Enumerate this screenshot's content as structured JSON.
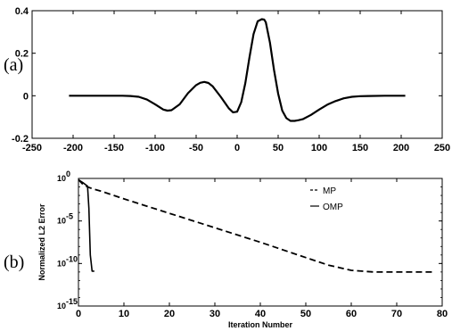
{
  "panels": [
    {
      "label": "(a)"
    },
    {
      "label": "(b)"
    }
  ],
  "chart_data": [
    {
      "type": "line",
      "title": "",
      "xlabel": "",
      "ylabel": "",
      "xlim": [
        -250,
        250
      ],
      "ylim": [
        -0.2,
        0.4
      ],
      "xticks": [
        -250,
        -200,
        -150,
        -100,
        -50,
        0,
        50,
        100,
        150,
        200,
        250
      ],
      "xtick_labels": [
        "-250",
        "-200",
        "-150",
        "-100",
        "-50",
        "0",
        "50",
        "100",
        "150",
        "200",
        "250"
      ],
      "yticks": [
        -0.2,
        0,
        0.2,
        0.4
      ],
      "ytick_labels": [
        "-0.2",
        "0",
        "0.2",
        "0.4"
      ],
      "grid": false,
      "series": [
        {
          "x": [
            -205,
            -180,
            -160,
            -140,
            -130,
            -120,
            -110,
            -100,
            -90,
            -85,
            -80,
            -70,
            -60,
            -50,
            -45,
            -40,
            -35,
            -30,
            -20,
            -10,
            -5,
            0,
            5,
            10,
            15,
            20,
            25,
            30,
            33,
            35,
            40,
            45,
            50,
            55,
            60,
            65,
            70,
            75,
            80,
            90,
            100,
            110,
            120,
            130,
            140,
            150,
            160,
            180,
            205
          ],
          "y": [
            0,
            0,
            0,
            0,
            -0.001,
            -0.005,
            -0.018,
            -0.04,
            -0.065,
            -0.07,
            -0.068,
            -0.04,
            0.012,
            0.05,
            0.061,
            0.065,
            0.06,
            0.045,
            -0.005,
            -0.06,
            -0.078,
            -0.075,
            -0.03,
            0.06,
            0.18,
            0.29,
            0.35,
            0.36,
            0.358,
            0.345,
            0.25,
            0.12,
            0.01,
            -0.07,
            -0.105,
            -0.118,
            -0.118,
            -0.115,
            -0.11,
            -0.09,
            -0.065,
            -0.042,
            -0.025,
            -0.012,
            -0.005,
            -0.002,
            -0.001,
            0,
            0
          ]
        }
      ]
    },
    {
      "type": "line",
      "title": "",
      "xlabel": "Iteration Number",
      "ylabel": "Normalized L2 Error",
      "xlim": [
        0,
        80
      ],
      "ylim_log10": [
        -15,
        0
      ],
      "xticks": [
        0,
        10,
        20,
        30,
        40,
        50,
        60,
        70,
        80
      ],
      "xtick_labels": [
        "0",
        "10",
        "20",
        "30",
        "40",
        "50",
        "60",
        "70",
        "80"
      ],
      "yticks_log10": [
        0,
        -5,
        -10,
        -15
      ],
      "ytick_base": "10",
      "ytick_exponents": [
        "0",
        "-5",
        "-10",
        "-15"
      ],
      "grid": false,
      "legend_position": "top-right",
      "series": [
        {
          "name": "MP",
          "style": "dashed",
          "x": [
            0,
            1,
            2,
            3,
            5,
            10,
            20,
            30,
            40,
            50,
            55,
            60,
            65,
            70,
            75,
            78
          ],
          "log10_y": [
            -0.15,
            -0.7,
            -1.0,
            -1.2,
            -1.5,
            -2.4,
            -4.1,
            -5.8,
            -7.5,
            -9.3,
            -10.2,
            -10.8,
            -11.0,
            -11.0,
            -11.0,
            -11.0
          ]
        },
        {
          "name": "OMP",
          "style": "solid",
          "x": [
            0,
            1,
            2,
            2.3,
            2.6,
            3,
            3.5
          ],
          "log10_y": [
            -0.15,
            -0.5,
            -0.9,
            -3.5,
            -9.0,
            -10.9,
            -10.9
          ]
        }
      ]
    }
  ]
}
